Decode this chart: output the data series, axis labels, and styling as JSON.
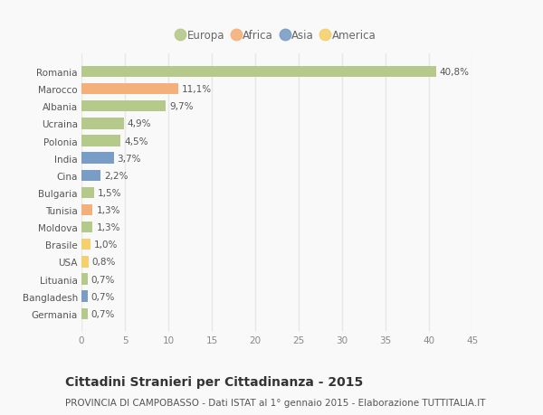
{
  "categories": [
    "Romania",
    "Marocco",
    "Albania",
    "Ucraina",
    "Polonia",
    "India",
    "Cina",
    "Bulgaria",
    "Tunisia",
    "Moldova",
    "Brasile",
    "USA",
    "Lituania",
    "Bangladesh",
    "Germania"
  ],
  "values": [
    40.8,
    11.1,
    9.7,
    4.9,
    4.5,
    3.7,
    2.2,
    1.5,
    1.3,
    1.3,
    1.0,
    0.8,
    0.7,
    0.7,
    0.7
  ],
  "labels": [
    "40,8%",
    "11,1%",
    "9,7%",
    "4,9%",
    "4,5%",
    "3,7%",
    "2,2%",
    "1,5%",
    "1,3%",
    "1,3%",
    "1,0%",
    "0,8%",
    "0,7%",
    "0,7%",
    "0,7%"
  ],
  "colors": [
    "#b5c98a",
    "#f4b07a",
    "#b5c98a",
    "#b5c98a",
    "#b5c98a",
    "#7a9dc5",
    "#7a9dc5",
    "#b5c98a",
    "#f4b07a",
    "#b5c98a",
    "#f5d06e",
    "#f5d06e",
    "#b5c98a",
    "#7a9dc5",
    "#b5c98a"
  ],
  "legend_labels": [
    "Europa",
    "Africa",
    "Asia",
    "America"
  ],
  "legend_colors": [
    "#b5c98a",
    "#f4b07a",
    "#7a9dc5",
    "#f5d06e"
  ],
  "title": "Cittadini Stranieri per Cittadinanza - 2015",
  "subtitle": "PROVINCIA DI CAMPOBASSO - Dati ISTAT al 1° gennaio 2015 - Elaborazione TUTTITALIA.IT",
  "xlim": [
    0,
    45
  ],
  "xticks": [
    0,
    5,
    10,
    15,
    20,
    25,
    30,
    35,
    40,
    45
  ],
  "bg_color": "#f9f9f9",
  "grid_color": "#e8e8e8",
  "bar_height": 0.65,
  "label_fontsize": 7.5,
  "tick_fontsize": 7.5,
  "title_fontsize": 10,
  "subtitle_fontsize": 7.5
}
